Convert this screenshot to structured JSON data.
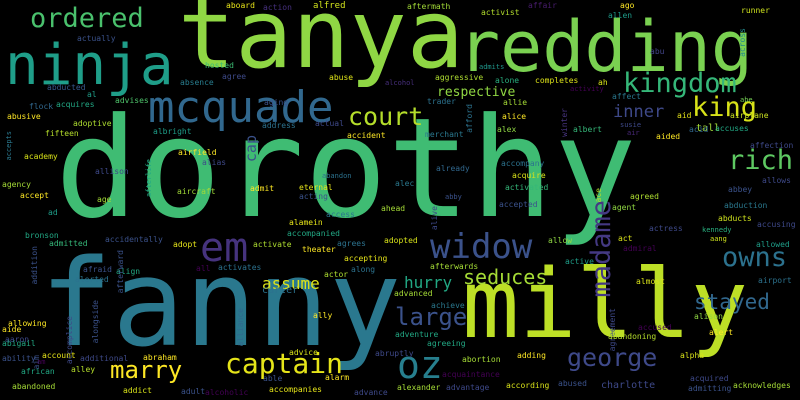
{
  "words": [
    {
      "text": "dorothy",
      "color": "#3fbc73"
    },
    {
      "text": "fanny",
      "color": "#2a788e"
    },
    {
      "text": "tanya",
      "color": "#8fd744"
    },
    {
      "text": "milly",
      "color": "#bddf26"
    },
    {
      "text": "redding",
      "color": "#7ad151"
    },
    {
      "text": "ninja",
      "color": "#1f9e89"
    },
    {
      "text": "mcquade",
      "color": "#31688e"
    },
    {
      "text": "em",
      "color": "#46337e"
    },
    {
      "text": "oz",
      "color": "#277f8e"
    },
    {
      "text": "widow",
      "color": "#3b528b"
    },
    {
      "text": "captain",
      "color": "#e5e419"
    },
    {
      "text": "kingdom",
      "color": "#35b779"
    },
    {
      "text": "ordered",
      "color": "#4ac16d"
    },
    {
      "text": "court",
      "color": "#b5de2b"
    },
    {
      "text": "king",
      "color": "#d8e219"
    },
    {
      "text": "rich",
      "color": "#5ec962"
    },
    {
      "text": "owns",
      "color": "#2c728e"
    },
    {
      "text": "madame",
      "color": "#443983"
    },
    {
      "text": "george",
      "color": "#3e4989"
    },
    {
      "text": "large",
      "color": "#3b528b"
    },
    {
      "text": "marry",
      "color": "#fde725"
    },
    {
      "text": "stayed",
      "color": "#31688e"
    },
    {
      "text": "seduces",
      "color": "#a5db36"
    },
    {
      "text": "hurry",
      "color": "#22a884"
    },
    {
      "text": "assume",
      "color": "#dde318"
    },
    {
      "text": "inner",
      "color": "#3e4989"
    },
    {
      "text": "respective",
      "color": "#90d743"
    },
    {
      "text": "cap",
      "color": "#3b528b"
    },
    {
      "text": "carter",
      "color": "#2c728e"
    },
    {
      "text": "alfred",
      "color": "#d0e11c"
    },
    {
      "text": "aboard",
      "color": "#e7e419"
    },
    {
      "text": "action",
      "color": "#46307e"
    },
    {
      "text": "aftermath",
      "color": "#a2da37"
    },
    {
      "text": "activist",
      "color": "#b2dd2d"
    },
    {
      "text": "affair",
      "color": "#481c6e"
    },
    {
      "text": "ago",
      "color": "#fde725"
    },
    {
      "text": "allen",
      "color": "#1e9b8a"
    },
    {
      "text": "runner",
      "color": "#cde11d"
    },
    {
      "text": "across",
      "color": "#238a8d"
    },
    {
      "text": "actually",
      "color": "#3b528b"
    },
    {
      "text": "hosted",
      "color": "#3dbc74"
    },
    {
      "text": "abu",
      "color": "#414487"
    },
    {
      "text": "tall",
      "color": "#a2da37"
    },
    {
      "text": "admits",
      "color": "#1f968b"
    },
    {
      "text": "absence",
      "color": "#287d8e"
    },
    {
      "text": "agree",
      "color": "#3e4a89"
    },
    {
      "text": "abuse",
      "color": "#dde318"
    },
    {
      "text": "alcohol",
      "color": "#472f7d"
    },
    {
      "text": "aggressive",
      "color": "#addc30"
    },
    {
      "text": "alone",
      "color": "#29af7f"
    },
    {
      "text": "completes",
      "color": "#dde318"
    },
    {
      "text": "ah",
      "color": "#d8e219"
    },
    {
      "text": "abducted",
      "color": "#38588c"
    },
    {
      "text": "al",
      "color": "#1f9e89"
    },
    {
      "text": "advises",
      "color": "#4ec36b"
    },
    {
      "text": "aging",
      "color": "#3b528b"
    },
    {
      "text": "trader",
      "color": "#2c728e"
    },
    {
      "text": "allie",
      "color": "#a5db36"
    },
    {
      "text": "activity",
      "color": "#440154"
    },
    {
      "text": "affect",
      "color": "#2a788e"
    },
    {
      "text": "abe",
      "color": "#75d054"
    },
    {
      "text": "flock",
      "color": "#31688e"
    },
    {
      "text": "acquires",
      "color": "#22a884"
    },
    {
      "text": "aid",
      "color": "#e5e419"
    },
    {
      "text": "airplane",
      "color": "#c8e020"
    },
    {
      "text": "abusive",
      "color": "#fde725"
    },
    {
      "text": "adoptive",
      "color": "#addc30"
    },
    {
      "text": "albright",
      "color": "#1f9e89"
    },
    {
      "text": "address",
      "color": "#2c728e"
    },
    {
      "text": "actual",
      "color": "#3e4989"
    },
    {
      "text": "accident",
      "color": "#fde725"
    },
    {
      "text": "merchant",
      "color": "#2a788e"
    },
    {
      "text": "alice",
      "color": "#fde725"
    },
    {
      "text": "alex",
      "color": "#90d743"
    },
    {
      "text": "afford",
      "color": "#2c728e"
    },
    {
      "text": "winter",
      "color": "#46337e"
    },
    {
      "text": "albert",
      "color": "#35b779"
    },
    {
      "text": "susie",
      "color": "#3e4989"
    },
    {
      "text": "air",
      "color": "#482878"
    },
    {
      "text": "acid",
      "color": "#31688e"
    },
    {
      "text": "accuses",
      "color": "#22a884"
    },
    {
      "text": "aided",
      "color": "#fde725"
    },
    {
      "text": "fifteen",
      "color": "#b5de2b"
    },
    {
      "text": "accepts",
      "color": "#2a788e"
    },
    {
      "text": "academy",
      "color": "#d8e219"
    },
    {
      "text": "afterlife",
      "color": "#22a884"
    },
    {
      "text": "alias",
      "color": "#3e4989"
    },
    {
      "text": "airfield",
      "color": "#fde725"
    },
    {
      "text": "affection",
      "color": "#3e4989"
    },
    {
      "text": "allison",
      "color": "#3e4989"
    },
    {
      "text": "agency",
      "color": "#a5db36"
    },
    {
      "text": "aircraft",
      "color": "#a2da37"
    },
    {
      "text": "abandon",
      "color": "#2c728e"
    },
    {
      "text": "eternal",
      "color": "#e5e419"
    },
    {
      "text": "acting",
      "color": "#3b528b"
    },
    {
      "text": "alec",
      "color": "#2a788e"
    },
    {
      "text": "already",
      "color": "#31688e"
    },
    {
      "text": "accompany",
      "color": "#2c728e"
    },
    {
      "text": "acquire",
      "color": "#d8e219"
    },
    {
      "text": "activated",
      "color": "#35b779"
    },
    {
      "text": "abbey",
      "color": "#3b528b"
    },
    {
      "text": "allows",
      "color": "#3e4989"
    },
    {
      "text": "abduction",
      "color": "#2a788e"
    },
    {
      "text": "accept",
      "color": "#fde725"
    },
    {
      "text": "age",
      "color": "#a5db36"
    },
    {
      "text": "admit",
      "color": "#fde725"
    },
    {
      "text": "alamein",
      "color": "#e5e419"
    },
    {
      "text": "ahead",
      "color": "#a5db36"
    },
    {
      "text": "alive",
      "color": "#3e4989"
    },
    {
      "text": "abby",
      "color": "#3b528b"
    },
    {
      "text": "accepted",
      "color": "#3b528b"
    },
    {
      "text": "agent",
      "color": "#90d743"
    },
    {
      "text": "ace",
      "color": "#b5de2b"
    },
    {
      "text": "agreed",
      "color": "#addc30"
    },
    {
      "text": "abducts",
      "color": "#cde11d"
    },
    {
      "text": "accusing",
      "color": "#3e4989"
    },
    {
      "text": "ad",
      "color": "#1f9e89"
    },
    {
      "text": "access",
      "color": "#2a788e"
    },
    {
      "text": "bronson",
      "color": "#22a884"
    },
    {
      "text": "accompanied",
      "color": "#22a884"
    },
    {
      "text": "agrees",
      "color": "#2c728e"
    },
    {
      "text": "accepting",
      "color": "#e5e419"
    },
    {
      "text": "kennedy",
      "color": "#29af7f"
    },
    {
      "text": "aang",
      "color": "#cde11d"
    },
    {
      "text": "admitted",
      "color": "#35b779"
    },
    {
      "text": "accidentally",
      "color": "#3b528b"
    },
    {
      "text": "adopt",
      "color": "#e5e419"
    },
    {
      "text": "activate",
      "color": "#addc30"
    },
    {
      "text": "theater",
      "color": "#fde725"
    },
    {
      "text": "adopted",
      "color": "#d8e219"
    },
    {
      "text": "allow",
      "color": "#90d743"
    },
    {
      "text": "act",
      "color": "#d8e219"
    },
    {
      "text": "actress",
      "color": "#3e4989"
    },
    {
      "text": "admiral",
      "color": "#440154"
    },
    {
      "text": "allowed",
      "color": "#1f9e89"
    },
    {
      "text": "addition",
      "color": "#3b528b"
    },
    {
      "text": "afraid",
      "color": "#3b528b"
    },
    {
      "text": "align",
      "color": "#22a884"
    },
    {
      "text": "alerted",
      "color": "#2c728e"
    },
    {
      "text": "all",
      "color": "#440154"
    },
    {
      "text": "activates",
      "color": "#2c728e"
    },
    {
      "text": "along",
      "color": "#2c728e"
    },
    {
      "text": "active",
      "color": "#1f9e89"
    },
    {
      "text": "afterward",
      "color": "#3b528b"
    },
    {
      "text": "afterwards",
      "color": "#a5db36"
    },
    {
      "text": "almost",
      "color": "#d8e219"
    },
    {
      "text": "airport",
      "color": "#2c728e"
    },
    {
      "text": "actor",
      "color": "#addc30"
    },
    {
      "text": "achieve",
      "color": "#2a788e"
    },
    {
      "text": "accused",
      "color": "#440154"
    },
    {
      "text": "aide",
      "color": "#fde725"
    },
    {
      "text": "aaron",
      "color": "#3e4989"
    },
    {
      "text": "allowing",
      "color": "#fde725"
    },
    {
      "text": "alongside",
      "color": "#3b528b"
    },
    {
      "text": "accomplice",
      "color": "#3e4989"
    },
    {
      "text": "alliance",
      "color": "#31688e"
    },
    {
      "text": "ally",
      "color": "#fde725"
    },
    {
      "text": "advanced",
      "color": "#a5db36"
    },
    {
      "text": "adventure",
      "color": "#22a884"
    },
    {
      "text": "agreeing",
      "color": "#22a884"
    },
    {
      "text": "agreement",
      "color": "#3e4989"
    },
    {
      "text": "alison",
      "color": "#90d743"
    },
    {
      "text": "alert",
      "color": "#fde725"
    },
    {
      "text": "abigail",
      "color": "#22a884"
    },
    {
      "text": "account",
      "color": "#e5e419"
    },
    {
      "text": "ability",
      "color": "#3b528b"
    },
    {
      "text": "aim",
      "color": "#3b528b"
    },
    {
      "text": "additional",
      "color": "#3e4989"
    },
    {
      "text": "abraham",
      "color": "#fde725"
    },
    {
      "text": "advice",
      "color": "#d8e219"
    },
    {
      "text": "abruptly",
      "color": "#3e4989"
    },
    {
      "text": "abortion",
      "color": "#a5db36"
    },
    {
      "text": "acquaintance",
      "color": "#440154"
    },
    {
      "text": "adding",
      "color": "#fde725"
    },
    {
      "text": "alpha",
      "color": "#d8e219"
    },
    {
      "text": "african",
      "color": "#22a884"
    },
    {
      "text": "alley",
      "color": "#b5de2b"
    },
    {
      "text": "abandoned",
      "color": "#a5db36"
    },
    {
      "text": "addict",
      "color": "#d8e219"
    },
    {
      "text": "adult",
      "color": "#3b528b"
    },
    {
      "text": "alcoholic",
      "color": "#440154"
    },
    {
      "text": "able",
      "color": "#3b528b"
    },
    {
      "text": "accompanies",
      "color": "#e5e419"
    },
    {
      "text": "alarm",
      "color": "#fde725"
    },
    {
      "text": "advance",
      "color": "#3e4989"
    },
    {
      "text": "alexander",
      "color": "#a5db36"
    },
    {
      "text": "advantage",
      "color": "#3e4989"
    },
    {
      "text": "according",
      "color": "#d8e219"
    },
    {
      "text": "abused",
      "color": "#3b528b"
    },
    {
      "text": "charlotte",
      "color": "#3e4989"
    },
    {
      "text": "acquired",
      "color": "#3e4989"
    },
    {
      "text": "admitting",
      "color": "#3b528b"
    },
    {
      "text": "acknowledges",
      "color": "#a5db36"
    },
    {
      "text": "abandoning",
      "color": "#b5de2b"
    },
    {
      "text": "am",
      "color": "#440154"
    }
  ]
}
